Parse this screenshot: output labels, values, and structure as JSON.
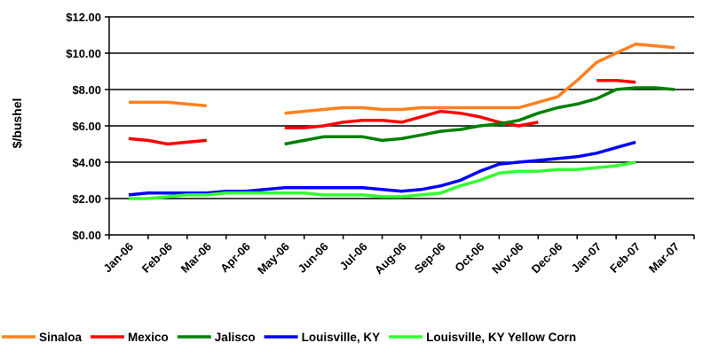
{
  "chart_data": {
    "type": "line",
    "ylabel": "$/bushel",
    "ylim": [
      0,
      12
    ],
    "y_ticks": [
      "$0.00",
      "$2.00",
      "$4.00",
      "$6.00",
      "$8.00",
      "$10.00",
      "$12.00"
    ],
    "y_tick_values": [
      0,
      2,
      4,
      6,
      8,
      10,
      12
    ],
    "categories": [
      "Jan-06",
      "Feb-06",
      "Mar-06",
      "Apr-06",
      "May-06",
      "Jun-06",
      "Jul-06",
      "Aug-06",
      "Sep-06",
      "Oct-06",
      "Nov-06",
      "Dec-06",
      "Jan-07",
      "Feb-07",
      "Mar-07"
    ],
    "grid": "horizontal",
    "legend_position": "bottom",
    "series": [
      {
        "name": "Sinaloa",
        "color": "#ff8020",
        "x": [
          0.5,
          1,
          1.5,
          2,
          2.5,
          4.5,
          5,
          5.5,
          6,
          6.5,
          7,
          7.5,
          8,
          8.5,
          9,
          9.5,
          10,
          10.5,
          11,
          11.5,
          12,
          12.5,
          13,
          13.5,
          14,
          14.5
        ],
        "values": [
          7.3,
          7.3,
          7.3,
          7.2,
          7.1,
          6.7,
          6.8,
          6.9,
          7.0,
          7.0,
          6.9,
          6.9,
          7.0,
          7.0,
          7.0,
          7.0,
          7.0,
          7.0,
          7.3,
          7.6,
          8.5,
          9.5,
          10.0,
          10.5,
          10.4,
          10.3
        ]
      },
      {
        "name": "Mexico",
        "color": "#ff0000",
        "x": [
          0.5,
          1,
          1.5,
          2,
          2.5,
          4.5,
          5,
          5.5,
          6,
          6.5,
          7,
          7.5,
          8,
          8.5,
          9,
          9.5,
          10,
          10.5,
          11,
          12.5,
          13,
          13.5
        ],
        "values": [
          5.3,
          5.2,
          5.0,
          5.1,
          5.2,
          5.9,
          5.9,
          6.0,
          6.2,
          6.3,
          6.3,
          6.2,
          6.5,
          6.8,
          6.7,
          6.5,
          6.2,
          6.0,
          6.2,
          8.5,
          8.5,
          8.4
        ]
      },
      {
        "name": "Jalisco",
        "color": "#008000",
        "x": [
          4.5,
          5,
          5.5,
          6,
          6.5,
          7,
          7.5,
          8,
          8.5,
          9,
          9.5,
          10,
          10.5,
          11,
          11.5,
          12,
          12.5,
          13,
          13.5,
          14,
          14.5
        ],
        "values": [
          5.0,
          5.2,
          5.4,
          5.4,
          5.4,
          5.2,
          5.3,
          5.5,
          5.7,
          5.8,
          6.0,
          6.1,
          6.3,
          6.7,
          7.0,
          7.2,
          7.5,
          8.0,
          8.1,
          8.1,
          8.0
        ]
      },
      {
        "name": "Louisville, KY",
        "color": "#0000ff",
        "x": [
          0.5,
          1,
          1.5,
          2,
          2.5,
          3,
          3.5,
          4,
          4.5,
          5,
          5.5,
          6,
          6.5,
          7,
          7.5,
          8,
          8.5,
          9,
          9.5,
          10,
          10.5,
          11,
          11.5,
          12,
          12.5,
          13,
          13.5
        ],
        "values": [
          2.2,
          2.3,
          2.3,
          2.3,
          2.3,
          2.4,
          2.4,
          2.5,
          2.6,
          2.6,
          2.6,
          2.6,
          2.6,
          2.5,
          2.4,
          2.5,
          2.7,
          3.0,
          3.5,
          3.9,
          4.0,
          4.1,
          4.2,
          4.3,
          4.5,
          4.8,
          5.1
        ]
      },
      {
        "name": "Louisville, KY Yellow Corn",
        "color": "#33ff33",
        "x": [
          0.5,
          1,
          1.5,
          2,
          2.5,
          3,
          3.5,
          4,
          4.5,
          5,
          5.5,
          6,
          6.5,
          7,
          7.5,
          8,
          8.5,
          9,
          9.5,
          10,
          10.5,
          11,
          11.5,
          12,
          12.5,
          13,
          13.5
        ],
        "values": [
          2.0,
          2.0,
          2.1,
          2.2,
          2.2,
          2.3,
          2.3,
          2.3,
          2.3,
          2.3,
          2.2,
          2.2,
          2.2,
          2.1,
          2.1,
          2.2,
          2.3,
          2.7,
          3.0,
          3.4,
          3.5,
          3.5,
          3.6,
          3.6,
          3.7,
          3.8,
          4.0
        ]
      }
    ]
  }
}
